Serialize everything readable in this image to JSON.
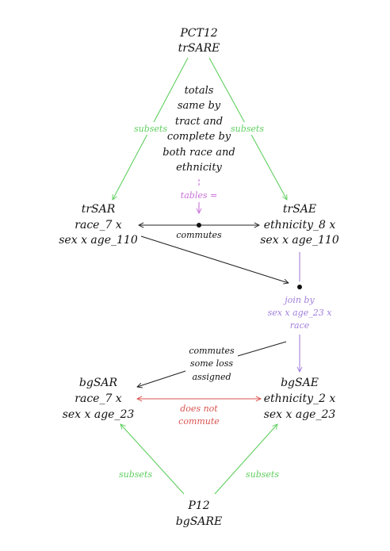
{
  "colors": {
    "black": "#222222",
    "green": "#5fcf5f",
    "magenta": "#c86fd9",
    "purple": "#a27fdc",
    "red": "#d9534f"
  },
  "nodes": {
    "pct12": {
      "line1": "PCT12",
      "line2": "trSARE"
    },
    "trsar": {
      "line1": "trSAR",
      "line2": "race_7 x",
      "line3": "sex x age_110"
    },
    "trsae": {
      "line1": "trSAE",
      "line2": "ethnicity_8 x",
      "line3": "sex x age_110"
    },
    "bgsar": {
      "line1": "bgSAR",
      "line2": "race_7 x",
      "line3": "sex x age_23"
    },
    "bgsae": {
      "line1": "bgSAE",
      "line2": "ethnicity_2 x",
      "line3": "sex x age_23"
    },
    "p12": {
      "line1": "P12",
      "line2": "bgSARE"
    }
  },
  "notes": {
    "totals": [
      "totals",
      "same by",
      "tract and",
      "complete by",
      "both race and",
      "ethnicity"
    ],
    "tables_eq": "tables =",
    "commutes": "commutes",
    "join": [
      "join by",
      "sex x age_23 x",
      "race"
    ],
    "commutes_loss": [
      "commutes",
      "some loss",
      "assigned"
    ],
    "does_not_commute": [
      "does not",
      "commute"
    ]
  },
  "edges": {
    "subsets_top_left": "subsets",
    "subsets_top_right": "subsets",
    "subsets_bottom_left": "subsets",
    "subsets_bottom_right": "subsets"
  }
}
